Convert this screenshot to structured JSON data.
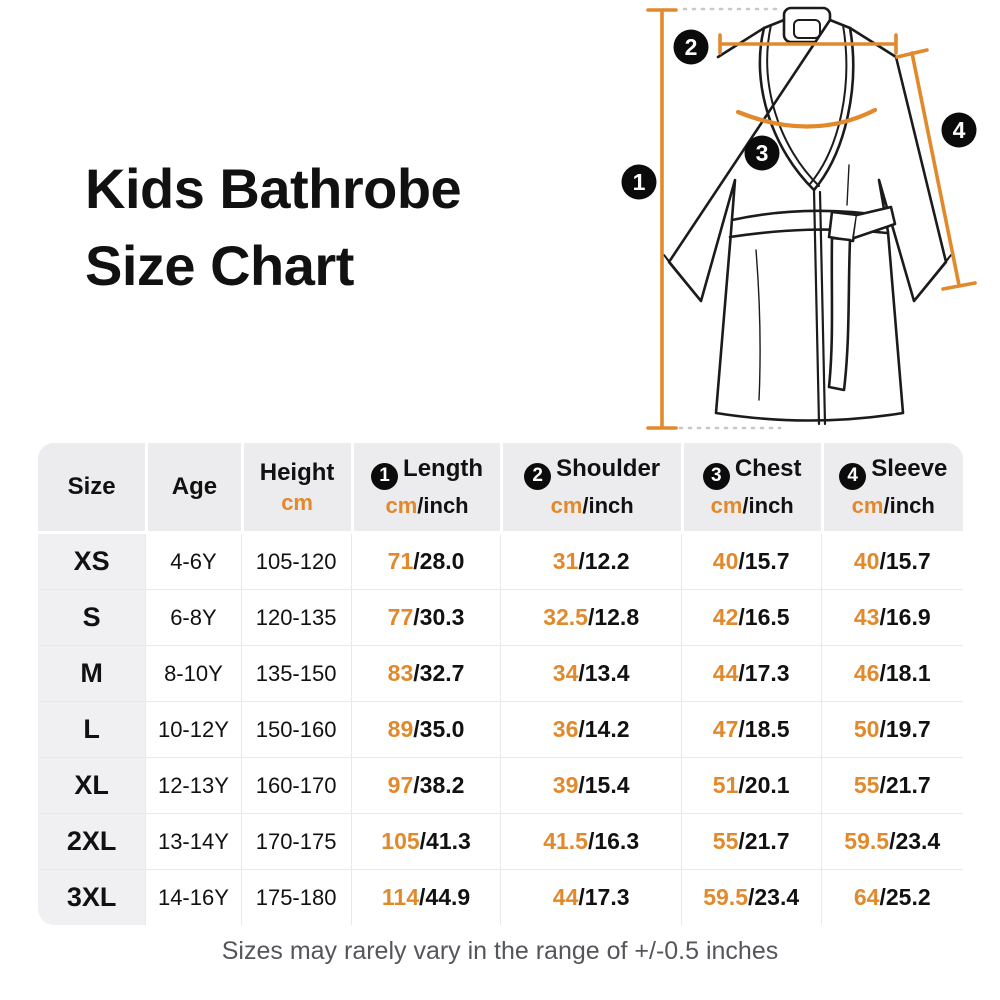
{
  "page": {
    "title_line1": "Kids Bathrobe",
    "title_line2": "Size Chart",
    "footer_note": "Sizes may rarely vary in the range of +/-0.5 inches"
  },
  "colors": {
    "accent": "#E1892B",
    "ink": "#111111",
    "sketch": "#1B1B1B",
    "marker-bg": "#0B0B0B",
    "marker-fg": "#FFFFFF",
    "header-bg": "#ECECEE",
    "sizecol-bg": "#F0F0F2",
    "grid": "#E9E9EC",
    "footer": "#55565A",
    "dotted": "#C8C8C8"
  },
  "diagram": {
    "markers": [
      "1",
      "2",
      "3",
      "4"
    ]
  },
  "chart_data": {
    "type": "table",
    "title": "Kids Bathrobe Size Chart",
    "units": {
      "cm": "cm",
      "sep": "/",
      "inch": "inch"
    },
    "header": {
      "size": "Size",
      "age": "Age",
      "height_label": "Height",
      "length_marker": "1",
      "length_label": "Length",
      "shoulder_marker": "2",
      "shoulder_label": "Shoulder",
      "chest_marker": "3",
      "chest_label": "Chest",
      "sleeve_marker": "4",
      "sleeve_label": "Sleeve"
    },
    "rows": [
      {
        "size": "XS",
        "age": "4-6Y",
        "height": "105-120",
        "length_cm": "71",
        "length_in": "28.0",
        "shoulder_cm": "31",
        "shoulder_in": "12.2",
        "chest_cm": "40",
        "chest_in": "15.7",
        "sleeve_cm": "40",
        "sleeve_in": "15.7"
      },
      {
        "size": "S",
        "age": "6-8Y",
        "height": "120-135",
        "length_cm": "77",
        "length_in": "30.3",
        "shoulder_cm": "32.5",
        "shoulder_in": "12.8",
        "chest_cm": "42",
        "chest_in": "16.5",
        "sleeve_cm": "43",
        "sleeve_in": "16.9"
      },
      {
        "size": "M",
        "age": "8-10Y",
        "height": "135-150",
        "length_cm": "83",
        "length_in": "32.7",
        "shoulder_cm": "34",
        "shoulder_in": "13.4",
        "chest_cm": "44",
        "chest_in": "17.3",
        "sleeve_cm": "46",
        "sleeve_in": "18.1"
      },
      {
        "size": "L",
        "age": "10-12Y",
        "height": "150-160",
        "length_cm": "89",
        "length_in": "35.0",
        "shoulder_cm": "36",
        "shoulder_in": "14.2",
        "chest_cm": "47",
        "chest_in": "18.5",
        "sleeve_cm": "50",
        "sleeve_in": "19.7"
      },
      {
        "size": "XL",
        "age": "12-13Y",
        "height": "160-170",
        "length_cm": "97",
        "length_in": "38.2",
        "shoulder_cm": "39",
        "shoulder_in": "15.4",
        "chest_cm": "51",
        "chest_in": "20.1",
        "sleeve_cm": "55",
        "sleeve_in": "21.7"
      },
      {
        "size": "2XL",
        "age": "13-14Y",
        "height": "170-175",
        "length_cm": "105",
        "length_in": "41.3",
        "shoulder_cm": "41.5",
        "shoulder_in": "16.3",
        "chest_cm": "55",
        "chest_in": "21.7",
        "sleeve_cm": "59.5",
        "sleeve_in": "23.4"
      },
      {
        "size": "3XL",
        "age": "14-16Y",
        "height": "175-180",
        "length_cm": "114",
        "length_in": "44.9",
        "shoulder_cm": "44",
        "shoulder_in": "17.3",
        "chest_cm": "59.5",
        "chest_in": "23.4",
        "sleeve_cm": "64",
        "sleeve_in": "25.2"
      }
    ]
  }
}
